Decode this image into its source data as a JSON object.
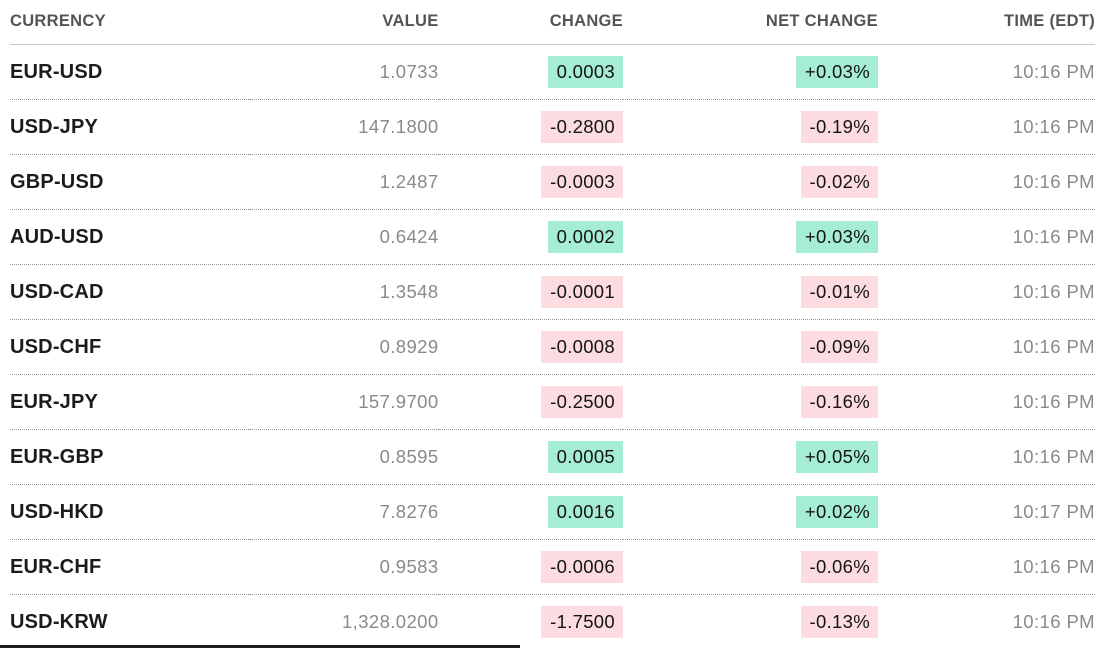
{
  "colors": {
    "positive_bg": "#a5edd3",
    "negative_bg": "#fcdce0",
    "header_text": "#545454",
    "muted_text": "#8a8a8a",
    "strong_text": "#1b1b1b"
  },
  "table": {
    "columns": [
      {
        "label": "CURRENCY"
      },
      {
        "label": "VALUE"
      },
      {
        "label": "CHANGE"
      },
      {
        "label": "NET CHANGE"
      },
      {
        "label": "TIME (EDT)"
      }
    ],
    "rows": [
      {
        "currency": "EUR-USD",
        "value": "1.0733",
        "change": "0.0003",
        "net_change": "+0.03%",
        "time": "10:16 PM",
        "direction": "up"
      },
      {
        "currency": "USD-JPY",
        "value": "147.1800",
        "change": "-0.2800",
        "net_change": "-0.19%",
        "time": "10:16 PM",
        "direction": "down"
      },
      {
        "currency": "GBP-USD",
        "value": "1.2487",
        "change": "-0.0003",
        "net_change": "-0.02%",
        "time": "10:16 PM",
        "direction": "down"
      },
      {
        "currency": "AUD-USD",
        "value": "0.6424",
        "change": "0.0002",
        "net_change": "+0.03%",
        "time": "10:16 PM",
        "direction": "up"
      },
      {
        "currency": "USD-CAD",
        "value": "1.3548",
        "change": "-0.0001",
        "net_change": "-0.01%",
        "time": "10:16 PM",
        "direction": "down"
      },
      {
        "currency": "USD-CHF",
        "value": "0.8929",
        "change": "-0.0008",
        "net_change": "-0.09%",
        "time": "10:16 PM",
        "direction": "down"
      },
      {
        "currency": "EUR-JPY",
        "value": "157.9700",
        "change": "-0.2500",
        "net_change": "-0.16%",
        "time": "10:16 PM",
        "direction": "down"
      },
      {
        "currency": "EUR-GBP",
        "value": "0.8595",
        "change": "0.0005",
        "net_change": "+0.05%",
        "time": "10:16 PM",
        "direction": "up"
      },
      {
        "currency": "USD-HKD",
        "value": "7.8276",
        "change": "0.0016",
        "net_change": "+0.02%",
        "time": "10:17 PM",
        "direction": "up"
      },
      {
        "currency": "EUR-CHF",
        "value": "0.9583",
        "change": "-0.0006",
        "net_change": "-0.06%",
        "time": "10:16 PM",
        "direction": "down"
      },
      {
        "currency": "USD-KRW",
        "value": "1,328.0200",
        "change": "-1.7500",
        "net_change": "-0.13%",
        "time": "10:16 PM",
        "direction": "down"
      }
    ]
  },
  "chart_data": {
    "type": "table",
    "columns": [
      "CURRENCY",
      "VALUE",
      "CHANGE",
      "NET CHANGE",
      "TIME (EDT)"
    ],
    "rows": [
      [
        "EUR-USD",
        "1.0733",
        "0.0003",
        "+0.03%",
        "10:16 PM"
      ],
      [
        "USD-JPY",
        "147.1800",
        "-0.2800",
        "-0.19%",
        "10:16 PM"
      ],
      [
        "GBP-USD",
        "1.2487",
        "-0.0003",
        "-0.02%",
        "10:16 PM"
      ],
      [
        "AUD-USD",
        "0.6424",
        "0.0002",
        "+0.03%",
        "10:16 PM"
      ],
      [
        "USD-CAD",
        "1.3548",
        "-0.0001",
        "-0.01%",
        "10:16 PM"
      ],
      [
        "USD-CHF",
        "0.8929",
        "-0.0008",
        "-0.09%",
        "10:16 PM"
      ],
      [
        "EUR-JPY",
        "157.9700",
        "-0.2500",
        "-0.16%",
        "10:16 PM"
      ],
      [
        "EUR-GBP",
        "0.8595",
        "0.0005",
        "+0.05%",
        "10:16 PM"
      ],
      [
        "USD-HKD",
        "7.8276",
        "0.0016",
        "+0.02%",
        "10:17 PM"
      ],
      [
        "EUR-CHF",
        "0.9583",
        "-0.0006",
        "-0.06%",
        "10:16 PM"
      ],
      [
        "USD-KRW",
        "1,328.0200",
        "-1.7500",
        "-0.13%",
        "10:16 PM"
      ]
    ]
  }
}
